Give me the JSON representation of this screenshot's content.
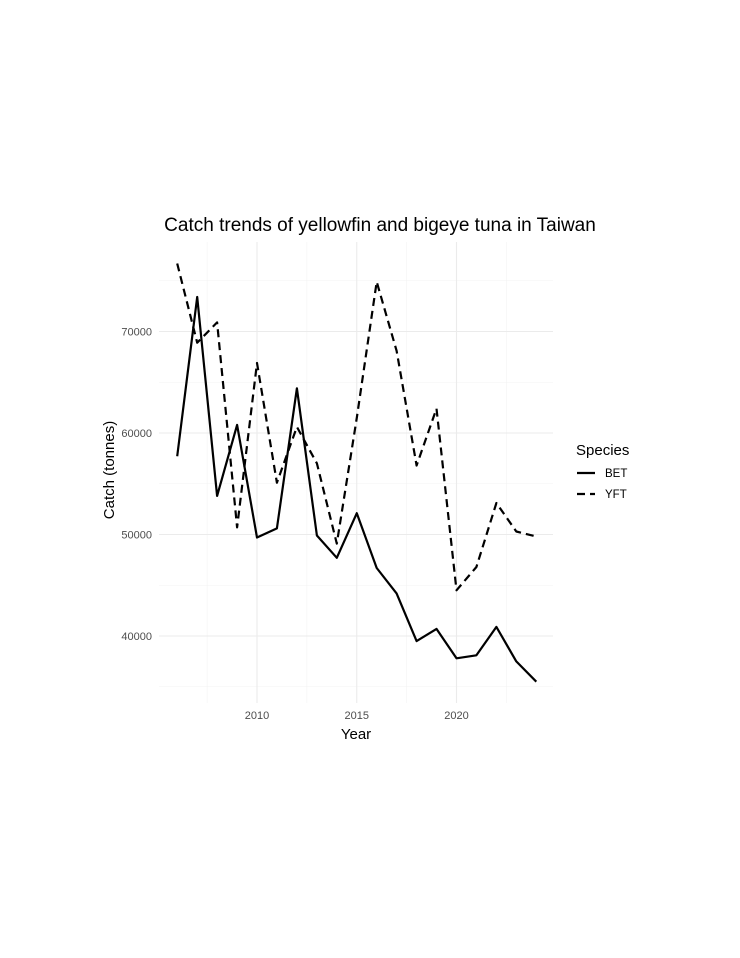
{
  "chart_data": {
    "type": "line",
    "title": "Catch trends of yellowfin and bigeye tuna in Taiwan",
    "xlabel": "Year",
    "ylabel": "Catch (tonnes)",
    "x": [
      2006,
      2007,
      2008,
      2009,
      2010,
      2011,
      2012,
      2013,
      2014,
      2015,
      2016,
      2017,
      2018,
      2019,
      2020,
      2021,
      2022,
      2023,
      2024
    ],
    "series": [
      {
        "name": "BET",
        "linetype": "solid",
        "values": [
          57700,
          73400,
          53800,
          60800,
          49700,
          50600,
          64400,
          49900,
          47700,
          52100,
          46700,
          44200,
          39500,
          40700,
          37800,
          38100,
          40900,
          37500,
          35500
        ]
      },
      {
        "name": "YFT",
        "linetype": "dashed",
        "values": [
          76700,
          68900,
          70900,
          50700,
          66900,
          55100,
          60600,
          57000,
          49100,
          61500,
          74900,
          68100,
          56800,
          62400,
          44500,
          46800,
          53100,
          50300,
          49800
        ]
      }
    ],
    "x_ticks": [
      2010,
      2015,
      2020
    ],
    "x_tick_labels": [
      "2010",
      "2015",
      "2020"
    ],
    "y_ticks": [
      40000,
      50000,
      60000,
      70000
    ],
    "y_tick_labels": [
      "40000",
      "50000",
      "60000",
      "70000"
    ],
    "xlim": [
      2005.1,
      2024.9
    ],
    "ylim": [
      33300,
      79000
    ],
    "grid": true,
    "legend": {
      "title": "Species",
      "position": "right",
      "entries": [
        {
          "label": "BET",
          "linetype": "solid"
        },
        {
          "label": "YFT",
          "linetype": "dashed"
        }
      ]
    }
  }
}
